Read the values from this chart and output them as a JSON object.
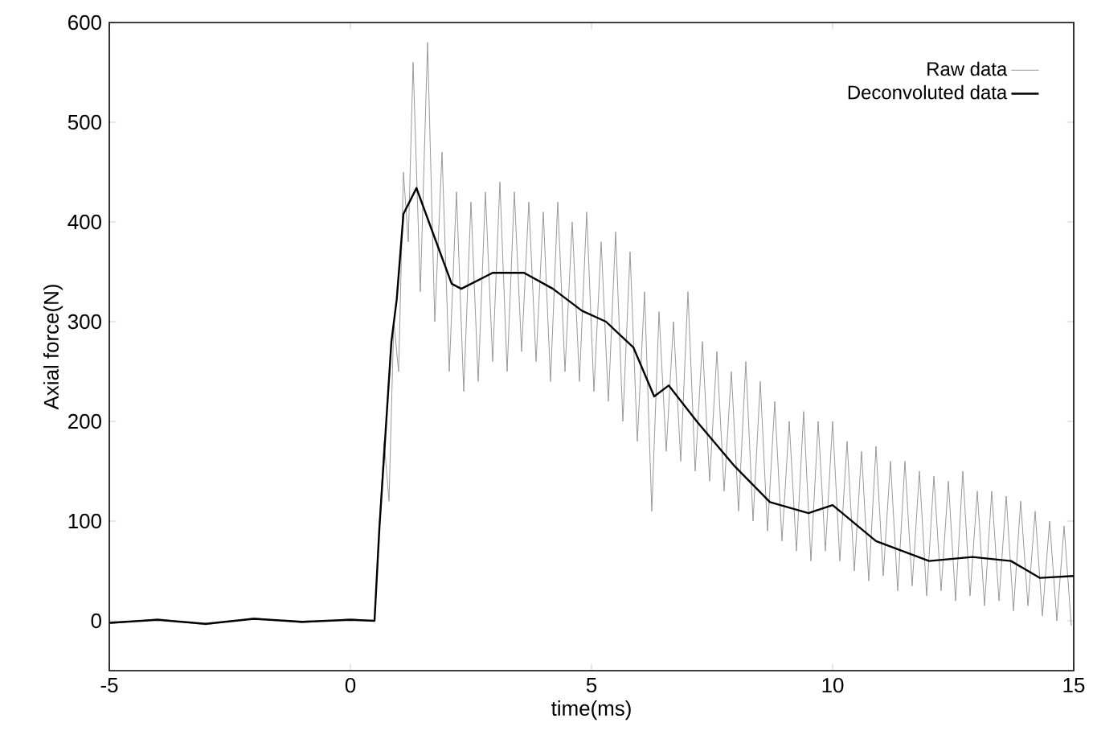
{
  "chart_data": {
    "type": "line",
    "xlabel": "time(ms)",
    "ylabel": "Axial force(N)",
    "xlim": [
      -5,
      15
    ],
    "ylim": [
      -50,
      600
    ],
    "xticks": [
      -5,
      0,
      5,
      10,
      15
    ],
    "yticks": [
      0,
      100,
      200,
      300,
      400,
      500,
      600
    ],
    "grid": false,
    "legend": "top right",
    "marker": "none",
    "line_style": "solid",
    "series": [
      {
        "name": "Raw data",
        "color": "#999999",
        "x": [
          -5,
          -4,
          -3,
          -2,
          -1,
          0,
          0.5,
          0.6,
          0.7,
          0.8,
          0.9,
          1.0,
          1.1,
          1.2,
          1.3,
          1.45,
          1.6,
          1.75,
          1.9,
          2.05,
          2.2,
          2.35,
          2.5,
          2.65,
          2.8,
          2.95,
          3.1,
          3.25,
          3.4,
          3.55,
          3.7,
          3.85,
          4.0,
          4.15,
          4.3,
          4.45,
          4.6,
          4.75,
          4.9,
          5.05,
          5.2,
          5.35,
          5.5,
          5.65,
          5.8,
          5.95,
          6.1,
          6.25,
          6.4,
          6.55,
          6.7,
          6.85,
          7.0,
          7.15,
          7.3,
          7.45,
          7.6,
          7.75,
          7.9,
          8.05,
          8.2,
          8.35,
          8.5,
          8.65,
          8.8,
          8.95,
          9.1,
          9.25,
          9.4,
          9.55,
          9.7,
          9.85,
          10.0,
          10.15,
          10.3,
          10.45,
          10.6,
          10.75,
          10.9,
          11.05,
          11.2,
          11.35,
          11.5,
          11.65,
          11.8,
          11.95,
          12.1,
          12.25,
          12.4,
          12.55,
          12.7,
          12.85,
          13.0,
          13.15,
          13.3,
          13.45,
          13.6,
          13.75,
          13.9,
          14.05,
          14.2,
          14.35,
          14.5,
          14.65,
          14.8,
          14.95
        ],
        "values": [
          -3,
          2,
          -4,
          3,
          -2,
          2,
          0,
          95,
          180,
          120,
          300,
          250,
          450,
          380,
          560,
          330,
          580,
          300,
          470,
          250,
          430,
          230,
          420,
          240,
          430,
          260,
          440,
          250,
          430,
          270,
          420,
          260,
          410,
          240,
          420,
          250,
          400,
          240,
          410,
          230,
          380,
          220,
          390,
          200,
          370,
          180,
          330,
          110,
          310,
          170,
          300,
          160,
          330,
          150,
          280,
          140,
          270,
          130,
          250,
          110,
          260,
          100,
          240,
          90,
          220,
          80,
          200,
          70,
          210,
          60,
          200,
          70,
          200,
          60,
          180,
          50,
          170,
          40,
          175,
          45,
          160,
          30,
          160,
          35,
          150,
          25,
          145,
          30,
          140,
          20,
          150,
          25,
          130,
          15,
          130,
          20,
          125,
          10,
          120,
          15,
          110,
          5,
          100,
          0,
          95,
          -5
        ]
      },
      {
        "name": "Deconvoluted data",
        "color": "#000000",
        "x": [
          -5,
          -4,
          -3,
          -2,
          -1,
          0,
          0.5,
          0.6,
          0.85,
          0.96,
          1.1,
          1.37,
          1.65,
          2.1,
          2.3,
          2.95,
          3.6,
          4.2,
          4.8,
          5.3,
          5.87,
          6.3,
          6.6,
          7.2,
          7.95,
          8.7,
          9.5,
          10.0,
          10.9,
          12.0,
          12.9,
          13.7,
          14.3,
          15.0
        ],
        "values": [
          -2,
          1,
          -3,
          2,
          -1,
          1,
          0,
          92,
          280,
          322,
          408,
          434,
          397,
          338,
          333,
          349,
          349,
          333,
          311,
          300,
          274,
          225,
          236,
          199,
          156,
          119,
          108,
          116,
          80,
          60,
          64,
          60,
          43,
          45
        ]
      }
    ]
  }
}
